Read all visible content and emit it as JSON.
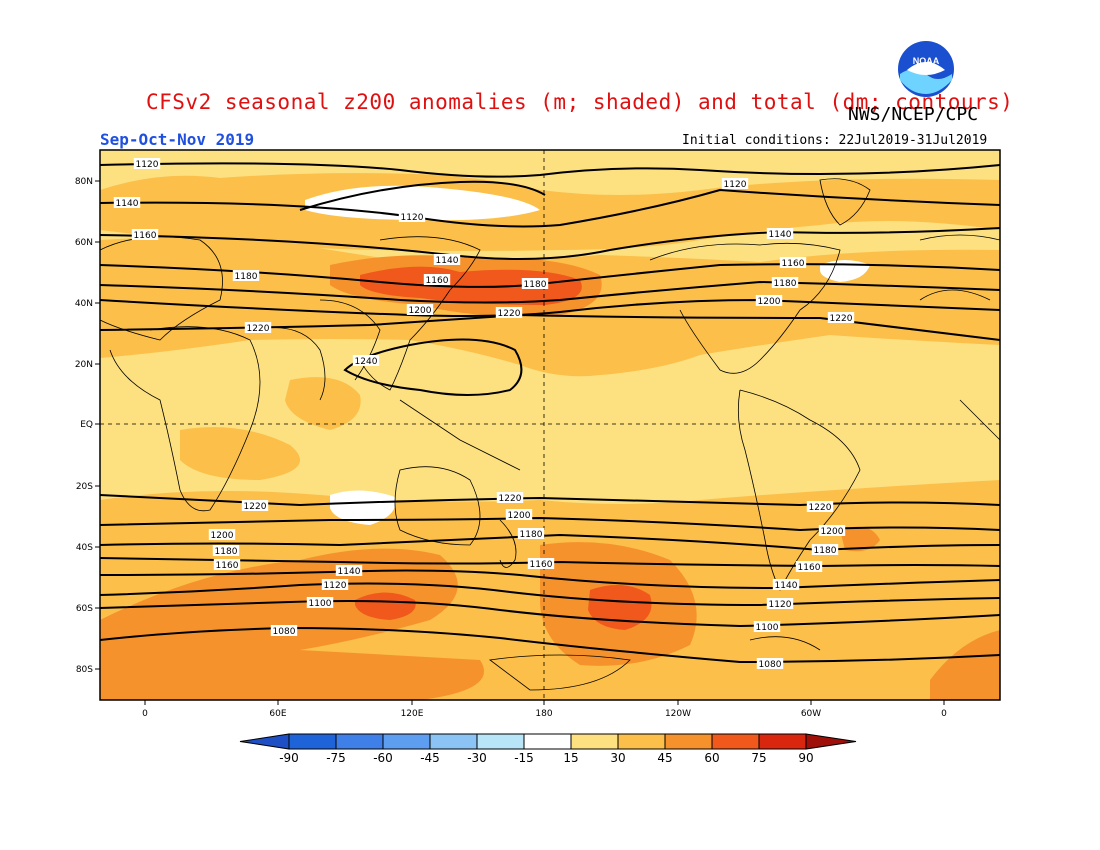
{
  "header": {
    "title": "CFSv2 seasonal z200 anomalies (m; shaded) and total (dm; contours)",
    "agency": "NWS/NCEP/CPC",
    "season": "Sep-Oct-Nov 2019",
    "initial_conditions": "Initial conditions: 22Jul2019-31Jul2019",
    "logo_text": "NOAA"
  },
  "colors": {
    "title": "#e01010",
    "season": "#2050e0",
    "ocean_base": "#fde07f",
    "level_15_30": "#fde07f",
    "level_30_45": "#fbbf4a",
    "level_45_60": "#f6922c",
    "level_60_75": "#f0581c",
    "level_75_90": "#d9260f",
    "neutral": "#ffffff"
  },
  "map": {
    "lat_labels": [
      "80N",
      "60N",
      "40N",
      "20N",
      "EQ",
      "20S",
      "40S",
      "60S",
      "80S"
    ],
    "lon_labels": [
      "0",
      "60E",
      "120E",
      "180",
      "120W",
      "60W",
      "0"
    ],
    "contour_labels": [
      "1120",
      "1120",
      "1120",
      "1140",
      "1140",
      "1140",
      "1160",
      "1160",
      "1160",
      "1180",
      "1180",
      "1180",
      "1200",
      "1200",
      "1220",
      "1220",
      "1240",
      "1220",
      "1220",
      "1200",
      "1200",
      "1180",
      "1180",
      "1160",
      "1160",
      "1140",
      "1140",
      "1120",
      "1120",
      "1100",
      "1100",
      "1080",
      "1080",
      "1220",
      "1200",
      "1180",
      "1160",
      "1220"
    ]
  },
  "colorbar": {
    "labels": [
      "-90",
      "-75",
      "-60",
      "-45",
      "-30",
      "-15",
      "15",
      "30",
      "45",
      "60",
      "75",
      "90"
    ],
    "colors": [
      "#1f63d8",
      "#3f80e8",
      "#5e9ef0",
      "#8cc3f5",
      "#b8e6f8",
      "#ffffff",
      "#fde07f",
      "#fbbf4a",
      "#f6922c",
      "#f0581c",
      "#d9260f"
    ],
    "low_color": "#1f4fc4",
    "high_color": "#a0100a"
  }
}
